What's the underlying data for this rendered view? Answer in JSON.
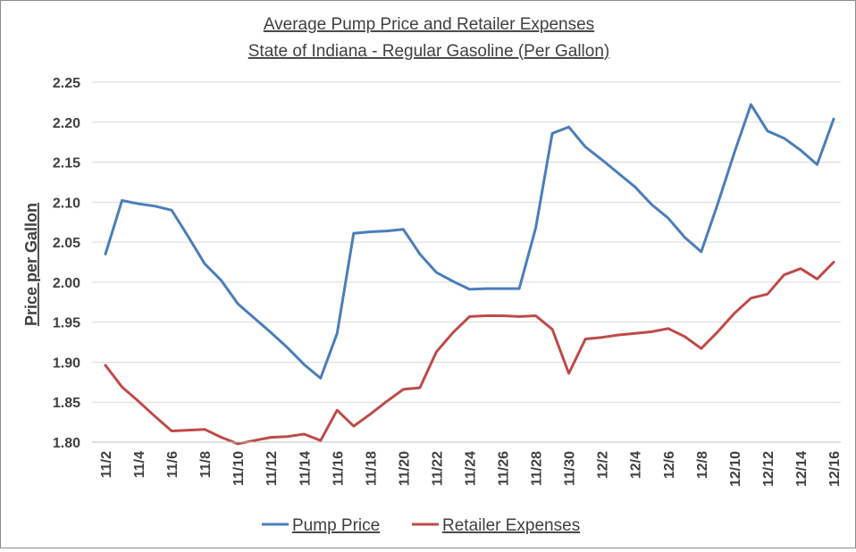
{
  "chart_data": {
    "type": "line",
    "title": "Average Pump Price and Retailer Expenses",
    "subtitle": "State of Indiana - Regular Gasoline (Per Gallon)",
    "xlabel": "",
    "ylabel": "Price per Gallon",
    "ylim": [
      1.8,
      2.25
    ],
    "yticks": [
      "1.80",
      "1.85",
      "1.90",
      "1.95",
      "2.00",
      "2.05",
      "2.10",
      "2.15",
      "2.20",
      "2.25"
    ],
    "x": [
      "11/2",
      "11/3",
      "11/4",
      "11/5",
      "11/6",
      "11/7",
      "11/8",
      "11/9",
      "11/10",
      "11/11",
      "11/12",
      "11/13",
      "11/14",
      "11/15",
      "11/16",
      "11/17",
      "11/18",
      "11/19",
      "11/20",
      "11/21",
      "11/22",
      "11/23",
      "11/24",
      "11/25",
      "11/26",
      "11/27",
      "11/28",
      "11/29",
      "11/30",
      "12/1",
      "12/2",
      "12/3",
      "12/4",
      "12/5",
      "12/6",
      "12/7",
      "12/8",
      "12/9",
      "12/10",
      "12/11",
      "12/12",
      "12/13",
      "12/14",
      "12/15",
      "12/16"
    ],
    "xtick_labels": [
      "11/2",
      "11/4",
      "11/6",
      "11/8",
      "11/10",
      "11/12",
      "11/14",
      "11/16",
      "11/18",
      "11/20",
      "11/22",
      "11/24",
      "11/26",
      "11/28",
      "11/30",
      "12/2",
      "12/4",
      "12/6",
      "12/8",
      "12/10",
      "12/12",
      "12/14",
      "12/16"
    ],
    "series": [
      {
        "name": "Pump Price",
        "color": "#4a7ebb",
        "values": [
          2.035,
          2.102,
          2.098,
          2.095,
          2.09,
          2.057,
          2.023,
          2.002,
          1.973,
          1.955,
          1.937,
          1.918,
          1.897,
          1.88,
          1.936,
          2.061,
          2.063,
          2.064,
          2.066,
          2.035,
          2.012,
          2.001,
          1.991,
          1.992,
          1.992,
          1.992,
          2.068,
          2.186,
          2.194,
          2.169,
          2.153,
          2.136,
          2.119,
          2.097,
          2.08,
          2.056,
          2.038,
          2.098,
          2.162,
          2.222,
          2.189,
          2.18,
          2.165,
          2.147,
          2.204
        ]
      },
      {
        "name": "Retailer Expenses",
        "color": "#be4b48",
        "values": [
          1.896,
          1.869,
          1.851,
          1.832,
          1.814,
          1.815,
          1.816,
          1.806,
          1.798,
          1.802,
          1.806,
          1.807,
          1.81,
          1.802,
          1.84,
          1.82,
          1.835,
          1.851,
          1.866,
          1.868,
          1.913,
          1.937,
          1.957,
          1.958,
          1.958,
          1.957,
          1.958,
          1.941,
          1.886,
          1.929,
          1.931,
          1.934,
          1.936,
          1.938,
          1.942,
          1.932,
          1.917,
          1.938,
          1.961,
          1.98,
          1.985,
          2.009,
          2.017,
          2.004,
          2.025
        ]
      }
    ],
    "grid": "horizontal",
    "legend_position": "bottom"
  }
}
